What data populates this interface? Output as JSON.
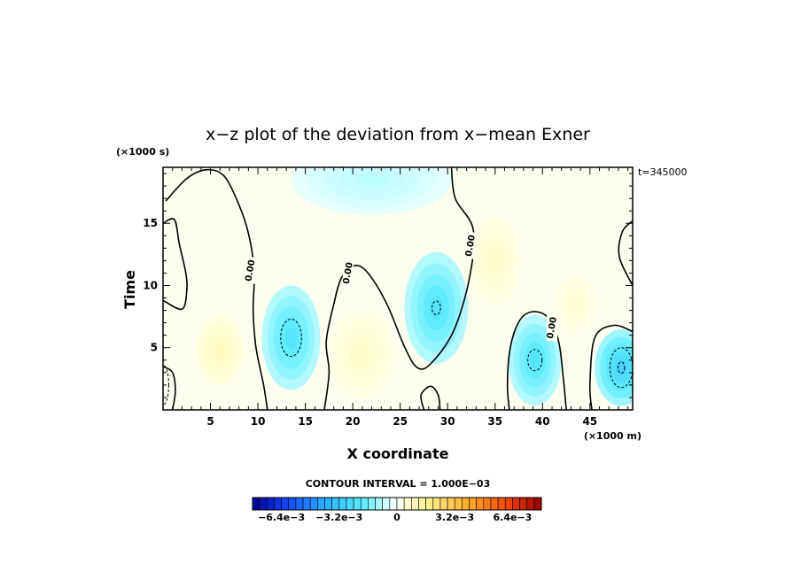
{
  "chart_data": {
    "type": "heatmap",
    "title": "x−z plot of the deviation from x−mean Exner",
    "xlabel": "X coordinate",
    "ylabel": "Time",
    "x_unit": "(×1000 m)",
    "y_unit": "(×1000 s)",
    "time_label": "t=345000",
    "xlim": [
      0,
      49.5
    ],
    "ylim": [
      0,
      19.5
    ],
    "x_ticks": [
      5,
      10,
      15,
      20,
      25,
      30,
      35,
      40,
      45
    ],
    "x_tick_labels": [
      "5",
      "10",
      "15",
      "20",
      "25",
      "30",
      "35",
      "40",
      "45"
    ],
    "y_ticks": [
      5,
      10,
      15
    ],
    "y_tick_labels": [
      "5",
      "10",
      "15"
    ],
    "contour_interval_text": "CONTOUR INTERVAL = 1.000E−03",
    "zero_contour_label": "0.00",
    "zero_contour_label_positions": [
      [
        9.2,
        11.2
      ],
      [
        19.5,
        11.0
      ],
      [
        32.4,
        13.2
      ],
      [
        41.0,
        6.6
      ]
    ],
    "colorbar": {
      "min": -0.008,
      "max": 0.008,
      "n_colors": 40,
      "tick_values": [
        -0.0064,
        -0.0032,
        0,
        0.0032,
        0.0064
      ],
      "tick_labels": [
        "−6.4e−3",
        "−3.2e−3",
        "0",
        "3.2e−3",
        "6.4e−3"
      ]
    },
    "field_features": [
      {
        "x": 13.5,
        "y": 5.8,
        "value": -0.0022,
        "sx": 2.2,
        "sy": 3.0
      },
      {
        "x": 28.8,
        "y": 8.2,
        "value": -0.0022,
        "sx": 2.4,
        "sy": 3.2
      },
      {
        "x": 39.2,
        "y": 4.0,
        "value": -0.0022,
        "sx": 2.0,
        "sy": 2.6
      },
      {
        "x": 48.3,
        "y": 3.4,
        "value": -0.0028,
        "sx": 2.0,
        "sy": 2.2
      },
      {
        "x": 22.0,
        "y": 18.5,
        "value": -0.0008,
        "sx": 6.0,
        "sy": 2.0
      },
      {
        "x": 6.0,
        "y": 4.8,
        "value": 0.0009,
        "sx": 1.8,
        "sy": 2.0
      },
      {
        "x": 21.0,
        "y": 4.5,
        "value": 0.0007,
        "sx": 2.5,
        "sy": 2.5
      },
      {
        "x": 35.0,
        "y": 12.0,
        "value": 0.0007,
        "sx": 2.0,
        "sy": 2.5
      },
      {
        "x": 43.5,
        "y": 8.5,
        "value": 0.0006,
        "sx": 1.5,
        "sy": 1.8
      }
    ],
    "zero_contours": [
      [
        [
          0.3,
          16.8
        ],
        [
          2.5,
          18.6
        ],
        [
          4.5,
          19.3
        ],
        [
          6.3,
          18.9
        ],
        [
          7.6,
          17.2
        ],
        [
          8.9,
          14.5
        ],
        [
          9.6,
          11.3
        ],
        [
          9.5,
          8.0
        ],
        [
          9.8,
          5.0
        ],
        [
          10.6,
          2.0
        ],
        [
          11.0,
          0.0
        ]
      ],
      [
        [
          1.0,
          0.0
        ],
        [
          1.3,
          1.5
        ],
        [
          1.0,
          3.0
        ],
        [
          0.0,
          3.5
        ]
      ],
      [
        [
          0.0,
          15.0
        ],
        [
          1.2,
          15.3
        ],
        [
          1.7,
          13.4
        ],
        [
          2.4,
          11.0
        ],
        [
          2.5,
          9.6
        ],
        [
          2.0,
          8.1
        ],
        [
          0.0,
          8.8
        ]
      ],
      [
        [
          17.0,
          0.0
        ],
        [
          17.5,
          3.0
        ],
        [
          17.2,
          5.5
        ],
        [
          18.0,
          8.5
        ],
        [
          18.8,
          10.6
        ],
        [
          20.2,
          11.6
        ],
        [
          21.6,
          11.0
        ],
        [
          23.6,
          8.5
        ],
        [
          25.5,
          5.0
        ],
        [
          26.8,
          3.4
        ],
        [
          28.2,
          3.7
        ],
        [
          30.6,
          6.3
        ],
        [
          32.3,
          10.6
        ],
        [
          32.7,
          14.5
        ],
        [
          30.8,
          17.0
        ],
        [
          30.4,
          19.5
        ]
      ],
      [
        [
          27.5,
          0.0
        ],
        [
          27.2,
          1.2
        ],
        [
          28.2,
          1.9
        ],
        [
          29.0,
          1.2
        ],
        [
          29.2,
          0.0
        ]
      ],
      [
        [
          36.5,
          0.0
        ],
        [
          36.3,
          2.0
        ],
        [
          36.6,
          5.0
        ],
        [
          37.6,
          7.2
        ],
        [
          39.0,
          7.9
        ],
        [
          40.6,
          7.4
        ],
        [
          41.7,
          5.5
        ],
        [
          42.2,
          2.5
        ],
        [
          42.5,
          0.0
        ]
      ],
      [
        [
          49.5,
          6.3
        ],
        [
          47.5,
          6.8
        ],
        [
          45.5,
          5.8
        ],
        [
          45.0,
          2.0
        ],
        [
          45.2,
          0.0
        ]
      ],
      [
        [
          49.5,
          15.2
        ],
        [
          48.4,
          14.3
        ],
        [
          48.1,
          12.3
        ],
        [
          49.5,
          10.0
        ]
      ]
    ],
    "dashed_contours": [
      {
        "cx": 13.5,
        "cy": 5.8,
        "rx": 1.1,
        "ry": 1.5
      },
      {
        "cx": 28.8,
        "cy": 8.2,
        "rx": 0.45,
        "ry": 0.55
      },
      {
        "cx": 39.2,
        "cy": 4.0,
        "rx": 0.75,
        "ry": 0.85
      },
      {
        "cx": 48.3,
        "cy": 3.4,
        "rx": 1.2,
        "ry": 1.6
      },
      {
        "cx": 48.3,
        "cy": 3.4,
        "rx": 0.35,
        "ry": 0.45
      },
      {
        "cx": 0.0,
        "cy": 2.0,
        "rx": 0.6,
        "ry": 1.6
      }
    ]
  }
}
